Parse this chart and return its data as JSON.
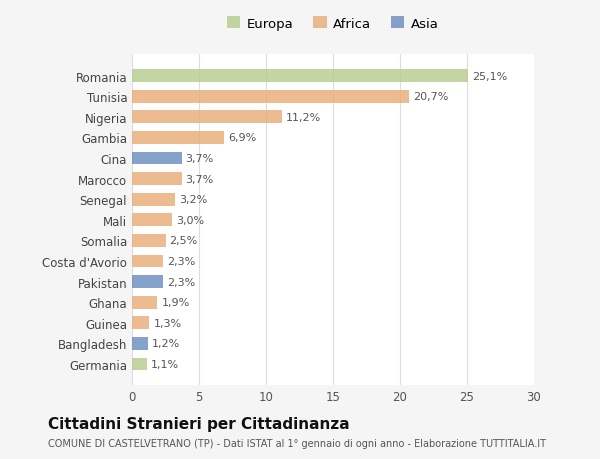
{
  "categories": [
    "Romania",
    "Tunisia",
    "Nigeria",
    "Gambia",
    "Cina",
    "Marocco",
    "Senegal",
    "Mali",
    "Somalia",
    "Costa d'Avorio",
    "Pakistan",
    "Ghana",
    "Guinea",
    "Bangladesh",
    "Germania"
  ],
  "values": [
    25.1,
    20.7,
    11.2,
    6.9,
    3.7,
    3.7,
    3.2,
    3.0,
    2.5,
    2.3,
    2.3,
    1.9,
    1.3,
    1.2,
    1.1
  ],
  "labels": [
    "25,1%",
    "20,7%",
    "11,2%",
    "6,9%",
    "3,7%",
    "3,7%",
    "3,2%",
    "3,0%",
    "2,5%",
    "2,3%",
    "2,3%",
    "1,9%",
    "1,3%",
    "1,2%",
    "1,1%"
  ],
  "continents": [
    "Europa",
    "Africa",
    "Africa",
    "Africa",
    "Asia",
    "Africa",
    "Africa",
    "Africa",
    "Africa",
    "Africa",
    "Asia",
    "Africa",
    "Africa",
    "Asia",
    "Europa"
  ],
  "colors": {
    "Europa": "#b5cc8e",
    "Africa": "#e8ae78",
    "Asia": "#6b8cbf"
  },
  "legend_labels": [
    "Europa",
    "Africa",
    "Asia"
  ],
  "legend_colors": [
    "#b5cc8e",
    "#e8ae78",
    "#6b8cbf"
  ],
  "xlim": [
    0,
    30
  ],
  "xticks": [
    0,
    5,
    10,
    15,
    20,
    25,
    30
  ],
  "title": "Cittadini Stranieri per Cittadinanza",
  "subtitle": "COMUNE DI CASTELVETRANO (TP) - Dati ISTAT al 1° gennaio di ogni anno - Elaborazione TUTTITALIA.IT",
  "background_color": "#f5f5f5",
  "bar_background": "#ffffff",
  "grid_color": "#dddddd",
  "label_fontsize": 8.0,
  "tick_fontsize": 8.5,
  "title_fontsize": 11,
  "subtitle_fontsize": 7.0,
  "bar_alpha": 0.82
}
